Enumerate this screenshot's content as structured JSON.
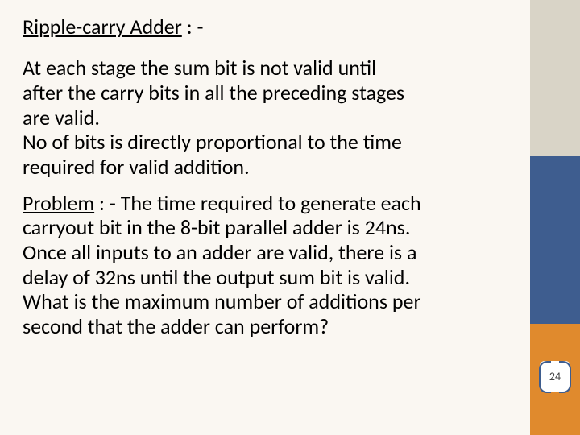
{
  "colors": {
    "slide_bg": "#faf7f2",
    "sidebar_top": "#d9d4c7",
    "sidebar_mid": "#3e5d8f",
    "sidebar_bot": "#e08a2d",
    "bracket": "#3e5d8f",
    "text": "#000000"
  },
  "typography": {
    "family": "Calibri",
    "title_size_pt": 20,
    "body_size_pt": 20
  },
  "title": {
    "underlined": "Ripple-carry Adder",
    "suffix": " : -"
  },
  "para1": {
    "lines": [
      "At each stage the sum bit is not valid until",
      "after the carry bits in all the preceding stages",
      "are valid.",
      "No of bits is directly proportional to the time",
      "required for valid addition."
    ]
  },
  "para2": {
    "label_underlined": "Problem",
    "label_suffix": " : -  ",
    "rest_first_line": "The time required to generate each",
    "rest_lines": [
      "carryout bit in the 8-bit parallel adder is 24ns.",
      "Once all inputs to an adder are valid, there is a",
      "delay of 32ns until the output sum bit is valid.",
      "What is the maximum number of additions per",
      "second that the adder can perform?"
    ]
  },
  "page_number": "24"
}
